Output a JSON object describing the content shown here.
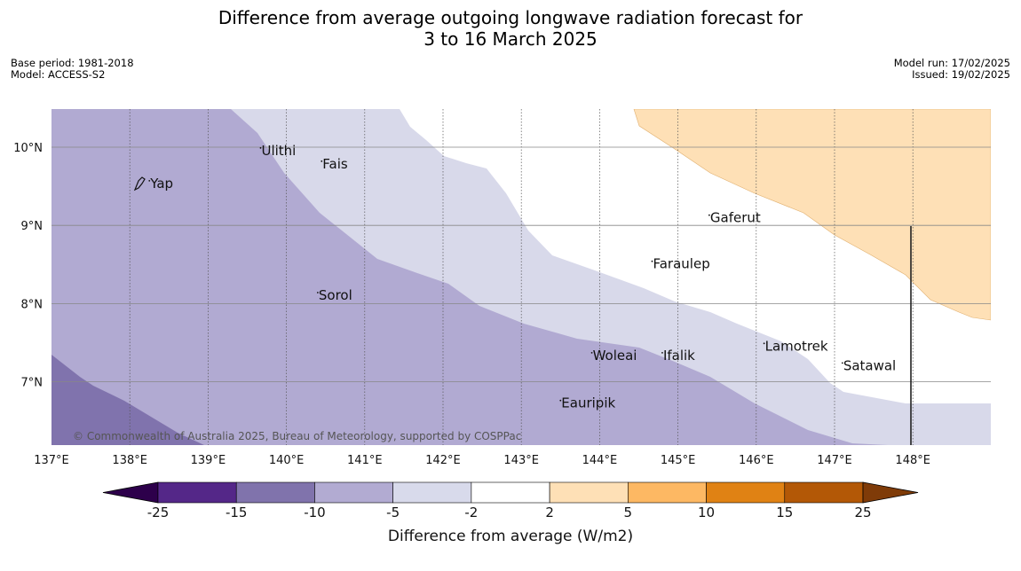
{
  "title": {
    "line1": "Difference from average outgoing longwave radiation forecast for",
    "line2": "3 to 16 March 2025"
  },
  "meta": {
    "base_period": "Base period: 1981-2018",
    "model": "Model: ACCESS-S2",
    "model_run": "Model run: 17/02/2025",
    "issued": "Issued: 19/02/2025"
  },
  "map": {
    "lon_ticks": [
      "137°E",
      "138°E",
      "139°E",
      "140°E",
      "141°E",
      "142°E",
      "143°E",
      "144°E",
      "145°E",
      "146°E",
      "147°E",
      "148°E"
    ],
    "lat_ticks": [
      "10°N",
      "9°N",
      "8°N",
      "7°N"
    ],
    "places": [
      {
        "name": "Yap",
        "lon": 138.25,
        "lat": 9.48
      },
      {
        "name": "Ulithi",
        "lon": 139.67,
        "lat": 9.9
      },
      {
        "name": "Fais",
        "lon": 140.45,
        "lat": 9.73
      },
      {
        "name": "Gaferut",
        "lon": 145.4,
        "lat": 9.04
      },
      {
        "name": "Faraulep",
        "lon": 144.67,
        "lat": 8.45
      },
      {
        "name": "Sorol",
        "lon": 140.4,
        "lat": 8.05
      },
      {
        "name": "Lamotrek",
        "lon": 146.1,
        "lat": 7.4
      },
      {
        "name": "Woleai",
        "lon": 143.9,
        "lat": 7.28
      },
      {
        "name": "Ifalik",
        "lon": 144.8,
        "lat": 7.28
      },
      {
        "name": "Satawal",
        "lon": 147.1,
        "lat": 7.15
      },
      {
        "name": "Eauripik",
        "lon": 143.5,
        "lat": 6.67
      }
    ],
    "copyright": "© Commonwealth of Australia 2025, Bureau of Meteorology, supported by COSPPac"
  },
  "colorbar": {
    "labels": [
      "-25",
      "-15",
      "-10",
      "-5",
      "-2",
      "2",
      "5",
      "10",
      "15",
      "25"
    ],
    "colors": [
      "#2d004b",
      "#542788",
      "#8073ac",
      "#b2abd2",
      "#d8daeb",
      "#ffffff",
      "#fee0b6",
      "#fdb863",
      "#e08214",
      "#b35806",
      "#7f3b08"
    ],
    "title": "Difference from average (W/m2)"
  }
}
